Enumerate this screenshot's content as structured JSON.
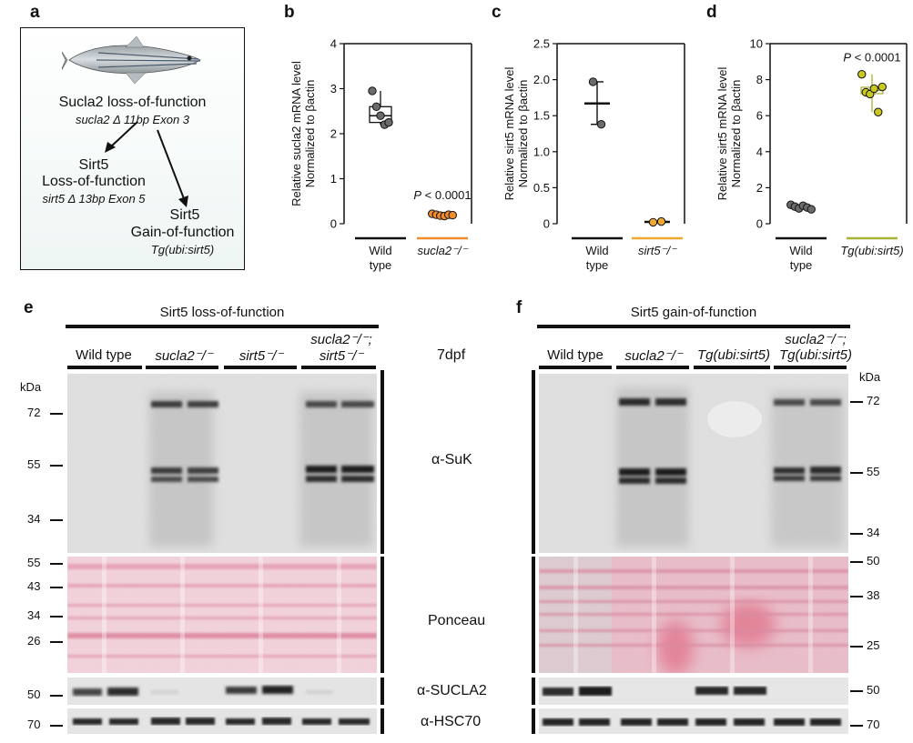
{
  "panels": {
    "a": {
      "label": "a",
      "title": "Sucla2 loss-of-function",
      "title_sub": "sucla2 Δ 11bp Exon 3",
      "left_branch_1": "Sirt5",
      "left_branch_2": "Loss-of-function",
      "left_branch_3": "sirt5 Δ 13bp Exon 5",
      "right_branch_1": "Sirt5",
      "right_branch_2": "Gain-of-function",
      "right_branch_3": "Tg(ubi:sirt5)",
      "icon": "zebrafish-icon"
    },
    "b": {
      "label": "b"
    },
    "c": {
      "label": "c"
    },
    "d": {
      "label": "d"
    },
    "e": {
      "label": "e",
      "title": "Sirt5 loss-of-function",
      "groups": [
        "Wild type",
        "sucla2⁻/⁻",
        "sirt5⁻/⁻",
        "sucla2⁻/⁻;",
        "sirt5⁻/⁻"
      ],
      "kda": "kDa",
      "suk_markers": [
        "72",
        "55",
        "34"
      ],
      "ponceau_markers": [
        "55",
        "43",
        "34",
        "26"
      ],
      "sucla2_marker": "50",
      "hsc70_marker": "70"
    },
    "f": {
      "label": "f",
      "title": "Sirt5 gain-of-function",
      "groups": [
        "Wild type",
        "sucla2⁻/⁻",
        "Tg(ubi:sirt5)",
        "sucla2⁻/⁻;",
        "Tg(ubi:sirt5)"
      ],
      "kda": "kDa",
      "suk_markers": [
        "72",
        "55",
        "34"
      ],
      "ponceau_markers": [
        "50",
        "38",
        "25"
      ],
      "sucla2_marker": "50",
      "hsc70_marker": "70"
    },
    "center": {
      "timepoint": "7dpf",
      "suk": "α-SuK",
      "ponceau": "Ponceau",
      "sucla2": "α-SUCLA2",
      "hsc70": "α-HSC70"
    }
  },
  "chart_data": [
    {
      "type": "box",
      "panel": "b",
      "ylabel_line1": "Relative sucla2 mRNA level",
      "ylabel_line2": "Normalized to βactin",
      "ylim": [
        0,
        4
      ],
      "yticks": [
        "0",
        "1",
        "2",
        "3",
        "4"
      ],
      "categories": [
        "Wild type",
        "sucla2⁻/⁻"
      ],
      "series": [
        {
          "values": [
            2.95,
            2.6,
            2.4,
            2.2,
            2.25
          ],
          "color": "#6b6b6b",
          "line_color": "#111111"
        },
        {
          "values": [
            0.22,
            0.2,
            0.18,
            0.17,
            0.2,
            0.19
          ],
          "color": "#f08c2c",
          "line_color": "#f08c2c"
        }
      ],
      "annotation": "P < 0.0001"
    },
    {
      "type": "scatter",
      "panel": "c",
      "ylabel_line1": "Relative sirt5 mRNA level",
      "ylabel_line2": "Normalized to βactin",
      "ylim": [
        0,
        2.5
      ],
      "yticks": [
        "0",
        "0.5",
        "1.0",
        "1.5",
        "2.0",
        "2.5"
      ],
      "categories": [
        "Wild type",
        "sirt5⁻/⁻"
      ],
      "series": [
        {
          "values": [
            1.97,
            1.38
          ],
          "mean": 1.67,
          "color": "#6b6b6b",
          "line_color": "#111111"
        },
        {
          "values": [
            0.02,
            0.03
          ],
          "mean": 0.025,
          "color": "#f0a830",
          "line_color": "#f0a830"
        }
      ]
    },
    {
      "type": "box",
      "panel": "d",
      "ylabel_line1": "Relative sirt5 mRNA level",
      "ylabel_line2": "Normalized to βactin",
      "ylim": [
        0,
        10
      ],
      "yticks": [
        "0",
        "2",
        "4",
        "6",
        "8",
        "10"
      ],
      "categories": [
        "Wild type",
        "Tg(ubi:sirt5)"
      ],
      "series": [
        {
          "values": [
            1.05,
            0.95,
            0.85,
            1.0,
            0.9,
            0.8
          ],
          "color": "#6b6b6b",
          "line_color": "#111111"
        },
        {
          "values": [
            8.3,
            7.3,
            7.2,
            7.5,
            6.2,
            7.6
          ],
          "color": "#c8c81e",
          "line_color": "#a8b436"
        }
      ],
      "annotation": "P < 0.0001"
    }
  ]
}
